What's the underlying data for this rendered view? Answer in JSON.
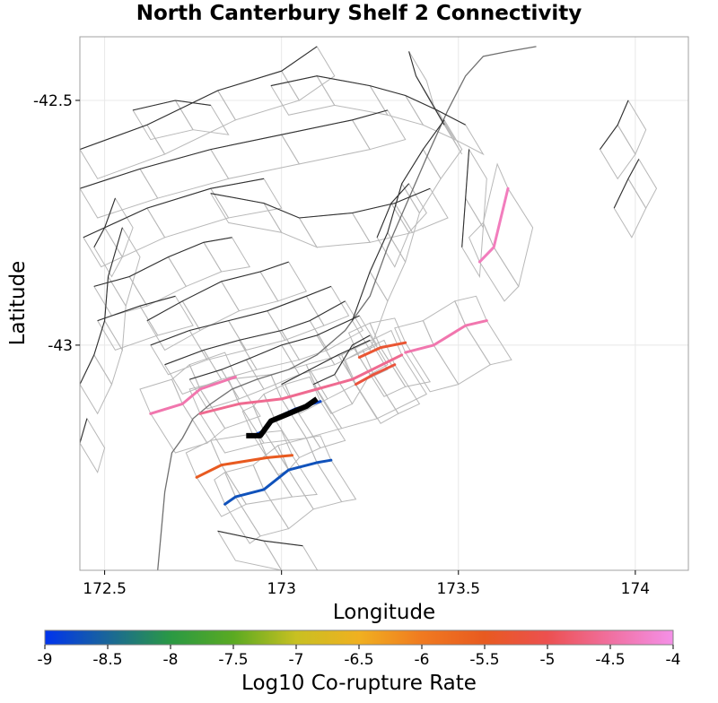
{
  "chart_data": {
    "type": "map",
    "title": "North Canterbury Shelf 2 Connectivity",
    "xlabel": "Longitude",
    "ylabel": "Latitude",
    "xlim": [
      172.43,
      174.15
    ],
    "ylim": [
      -43.46,
      -42.37
    ],
    "xticks": [
      172.5,
      173,
      173.5,
      174
    ],
    "xtick_labels": [
      "172.5",
      "173",
      "173.5",
      "174"
    ],
    "yticks": [
      -42.5,
      -43
    ],
    "ytick_labels": [
      "-42.5",
      "-43"
    ],
    "colorbar": {
      "label": "Log10 Co-rupture Rate",
      "min": -9,
      "max": -4,
      "ticks": [
        -9,
        -8.5,
        -8,
        -7.5,
        -7,
        -6.5,
        -6,
        -5.5,
        -5,
        -4.5,
        -4
      ],
      "tick_labels": [
        "-9",
        "-8.5",
        "-8",
        "-7.5",
        "-7",
        "-6.5",
        "-6",
        "-5.5",
        "-5",
        "-4.5",
        "-4"
      ],
      "colors": [
        "#0033ee",
        "#1a6699",
        "#2a9944",
        "#5aaa22",
        "#c8c022",
        "#f0b020",
        "#f07a20",
        "#e85a20",
        "#ec5050",
        "#f070a0",
        "#f490e8"
      ]
    },
    "colors": {
      "coastline": "#707070",
      "fault_trace": "#303030",
      "subsection_outline": "#b8b8b8",
      "grid": "#e8e8e8",
      "source_section": "#000000"
    },
    "source_section": {
      "name": "North Canterbury Shelf 2",
      "trace": [
        [
          172.9,
          -43.185
        ],
        [
          172.94,
          -43.185
        ],
        [
          172.97,
          -43.155
        ],
        [
          173.02,
          -43.14
        ],
        [
          173.07,
          -43.125
        ],
        [
          173.1,
          -43.11
        ]
      ]
    },
    "ruptures": [
      {
        "log10_rate": -4.3,
        "trace": [
          [
            173.64,
            -42.68
          ],
          [
            173.6,
            -42.8
          ],
          [
            173.56,
            -42.83
          ]
        ]
      },
      {
        "log10_rate": -4.4,
        "trace": [
          [
            173.58,
            -42.95
          ],
          [
            173.52,
            -42.96
          ],
          [
            173.43,
            -43.0
          ],
          [
            173.35,
            -43.015
          ]
        ]
      },
      {
        "log10_rate": -4.4,
        "trace": [
          [
            172.63,
            -43.14
          ],
          [
            172.72,
            -43.12
          ],
          [
            172.77,
            -43.09
          ],
          [
            172.87,
            -43.065
          ]
        ]
      },
      {
        "log10_rate": -4.6,
        "trace": [
          [
            172.77,
            -43.14
          ],
          [
            172.88,
            -43.12
          ],
          [
            173.0,
            -43.11
          ],
          [
            173.1,
            -43.09
          ],
          [
            173.2,
            -43.07
          ],
          [
            173.34,
            -43.02
          ]
        ]
      },
      {
        "log10_rate": -5.3,
        "trace": [
          [
            173.22,
            -43.025
          ],
          [
            173.28,
            -43.005
          ],
          [
            173.35,
            -42.995
          ]
        ]
      },
      {
        "log10_rate": -5.2,
        "trace": [
          [
            173.21,
            -43.08
          ],
          [
            173.26,
            -43.06
          ],
          [
            173.32,
            -43.04
          ]
        ]
      },
      {
        "log10_rate": -8.8,
        "trace": [
          [
            172.92,
            -43.185
          ],
          [
            172.95,
            -43.175
          ],
          [
            172.98,
            -43.15
          ],
          [
            173.04,
            -43.13
          ],
          [
            173.11,
            -43.115
          ]
        ]
      },
      {
        "log10_rate": -5.5,
        "trace": [
          [
            172.76,
            -43.27
          ],
          [
            172.83,
            -43.245
          ],
          [
            172.96,
            -43.23
          ],
          [
            173.03,
            -43.225
          ]
        ]
      },
      {
        "log10_rate": -8.7,
        "trace": [
          [
            172.84,
            -43.325
          ],
          [
            172.87,
            -43.31
          ],
          [
            172.95,
            -43.295
          ],
          [
            173.02,
            -43.255
          ],
          [
            173.1,
            -43.24
          ],
          [
            173.14,
            -43.235
          ]
        ]
      }
    ],
    "fault_traces": [
      [
        [
          172.43,
          -42.6
        ],
        [
          172.62,
          -42.55
        ],
        [
          172.82,
          -42.48
        ],
        [
          173.0,
          -42.44
        ],
        [
          173.1,
          -42.39
        ]
      ],
      [
        [
          172.43,
          -42.68
        ],
        [
          172.6,
          -42.64
        ],
        [
          172.8,
          -42.6
        ],
        [
          173.0,
          -42.57
        ],
        [
          173.2,
          -42.54
        ],
        [
          173.3,
          -42.52
        ]
      ],
      [
        [
          172.44,
          -42.78
        ],
        [
          172.62,
          -42.72
        ],
        [
          172.8,
          -42.68
        ],
        [
          172.95,
          -42.66
        ]
      ],
      [
        [
          172.8,
          -42.69
        ],
        [
          172.95,
          -42.71
        ],
        [
          173.05,
          -42.74
        ],
        [
          173.2,
          -42.73
        ],
        [
          173.32,
          -42.71
        ],
        [
          173.42,
          -42.68
        ]
      ],
      [
        [
          172.97,
          -42.47
        ],
        [
          173.1,
          -42.45
        ],
        [
          173.25,
          -42.47
        ],
        [
          173.35,
          -42.49
        ],
        [
          173.44,
          -42.52
        ],
        [
          173.52,
          -42.55
        ]
      ],
      [
        [
          173.36,
          -42.4
        ],
        [
          173.38,
          -42.45
        ],
        [
          173.42,
          -42.5
        ],
        [
          173.46,
          -42.55
        ]
      ],
      [
        [
          172.47,
          -42.88
        ],
        [
          172.57,
          -42.86
        ],
        [
          172.68,
          -42.82
        ],
        [
          172.78,
          -42.79
        ],
        [
          172.86,
          -42.78
        ]
      ],
      [
        [
          172.62,
          -42.95
        ],
        [
          172.72,
          -42.91
        ],
        [
          172.83,
          -42.87
        ],
        [
          172.94,
          -42.85
        ],
        [
          173.02,
          -42.83
        ]
      ],
      [
        [
          172.48,
          -42.95
        ],
        [
          172.6,
          -42.92
        ],
        [
          172.7,
          -42.9
        ]
      ],
      [
        [
          172.63,
          -43.0
        ],
        [
          172.74,
          -42.97
        ],
        [
          172.85,
          -42.95
        ],
        [
          172.96,
          -42.93
        ],
        [
          173.07,
          -42.9
        ],
        [
          173.14,
          -42.88
        ]
      ],
      [
        [
          172.67,
          -43.04
        ],
        [
          172.78,
          -43.01
        ],
        [
          172.88,
          -42.99
        ],
        [
          173.0,
          -42.97
        ],
        [
          173.08,
          -42.95
        ],
        [
          173.18,
          -42.91
        ]
      ],
      [
        [
          172.74,
          -43.07
        ],
        [
          172.83,
          -43.05
        ],
        [
          172.9,
          -43.03
        ],
        [
          173.0,
          -43.0
        ],
        [
          173.1,
          -42.98
        ],
        [
          173.22,
          -42.94
        ]
      ],
      [
        [
          173.0,
          -43.08
        ],
        [
          173.08,
          -43.05
        ],
        [
          173.16,
          -43.02
        ],
        [
          173.25,
          -42.99
        ]
      ],
      [
        [
          173.09,
          -43.08
        ],
        [
          173.15,
          -43.06
        ],
        [
          173.2,
          -43.0
        ],
        [
          173.25,
          -42.98
        ]
      ],
      [
        [
          173.2,
          -42.95
        ],
        [
          173.25,
          -42.85
        ],
        [
          173.3,
          -42.77
        ],
        [
          173.34,
          -42.67
        ],
        [
          173.4,
          -42.6
        ],
        [
          173.46,
          -42.54
        ]
      ],
      [
        [
          173.27,
          -42.78
        ],
        [
          173.31,
          -42.71
        ],
        [
          173.36,
          -42.67
        ]
      ],
      [
        [
          173.53,
          -42.6
        ],
        [
          173.52,
          -42.7
        ],
        [
          173.51,
          -42.8
        ]
      ],
      [
        [
          172.43,
          -43.08
        ],
        [
          172.47,
          -43.02
        ],
        [
          172.5,
          -42.95
        ],
        [
          172.51,
          -42.86
        ],
        [
          172.55,
          -42.76
        ]
      ],
      [
        [
          172.43,
          -43.2
        ],
        [
          172.45,
          -43.15
        ]
      ],
      [
        [
          172.47,
          -42.8
        ],
        [
          172.5,
          -42.76
        ],
        [
          172.53,
          -42.7
        ]
      ],
      [
        [
          173.9,
          -42.6
        ],
        [
          173.95,
          -42.55
        ],
        [
          173.98,
          -42.5
        ]
      ],
      [
        [
          173.94,
          -42.72
        ],
        [
          173.98,
          -42.66
        ],
        [
          174.01,
          -42.62
        ]
      ],
      [
        [
          172.82,
          -43.38
        ],
        [
          172.95,
          -43.4
        ],
        [
          173.06,
          -43.41
        ]
      ],
      [
        [
          172.58,
          -42.52
        ],
        [
          172.7,
          -42.5
        ],
        [
          172.8,
          -42.51
        ]
      ]
    ]
  }
}
